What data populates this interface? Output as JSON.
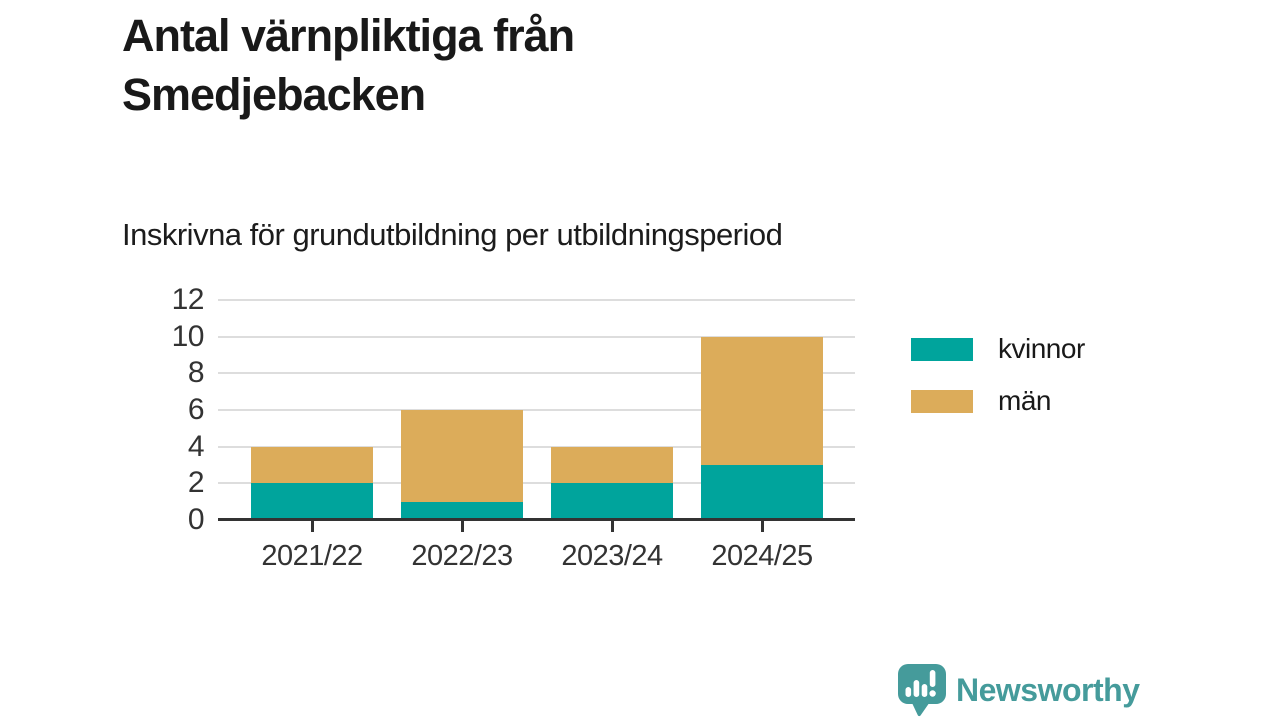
{
  "header": {
    "title": "Antal värnpliktiga från Smedjebacken",
    "subtitle": "Inskrivna för grundutbildning per utbildningsperiod"
  },
  "chart_data": {
    "type": "bar",
    "stacked": true,
    "title": "Antal värnpliktiga från Smedjebacken",
    "subtitle": "Inskrivna för grundutbildning per utbildningsperiod",
    "categories": [
      "2021/22",
      "2022/23",
      "2023/24",
      "2024/25"
    ],
    "series": [
      {
        "name": "kvinnor",
        "color": "#00A49C",
        "values": [
          2,
          1,
          2,
          3
        ]
      },
      {
        "name": "män",
        "color": "#DCAC5A",
        "values": [
          2,
          5,
          2,
          7
        ]
      }
    ],
    "totals": [
      4,
      6,
      4,
      10
    ],
    "xlabel": "",
    "ylabel": "",
    "ylim": [
      0,
      12
    ],
    "yticks": [
      0,
      2,
      4,
      6,
      8,
      10,
      12
    ],
    "grid": true,
    "grid_color": "#DDDDDD",
    "axis_color": "#333333",
    "tick_label_color": "#333333",
    "legend_position": "right"
  },
  "footer": {
    "brand": "Newsworthy",
    "brand_color": "#459B9B"
  }
}
